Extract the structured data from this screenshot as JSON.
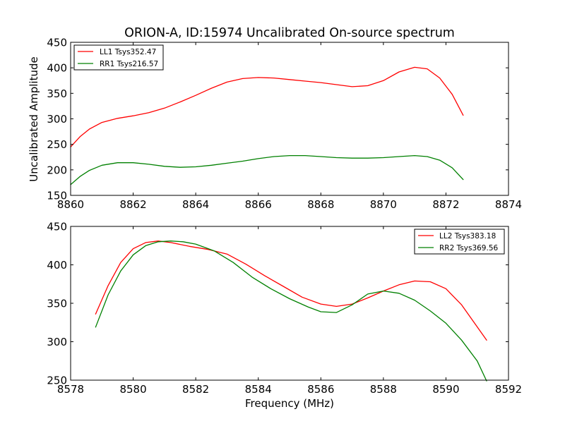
{
  "figure": {
    "title": "ORION-A, ID:15974 Uncalibrated On-source spectrum",
    "ylabel": "Uncalibrated Amplitude",
    "xlabel": "Frequency (MHz)"
  },
  "chart_data": [
    {
      "type": "line",
      "xlim": [
        8860,
        8874
      ],
      "ylim": [
        150,
        450
      ],
      "xticks": [
        8860,
        8862,
        8864,
        8866,
        8868,
        8870,
        8872,
        8874
      ],
      "yticks": [
        150,
        200,
        250,
        300,
        350,
        400,
        450
      ],
      "legend_position": "top-left",
      "series": [
        {
          "name": "LL1 Tsys352.47",
          "color": "#ff0000",
          "x": [
            8860.0,
            8860.3,
            8860.6,
            8861.0,
            8861.5,
            8862.0,
            8862.5,
            8863.0,
            8863.5,
            8864.0,
            8864.5,
            8865.0,
            8865.5,
            8866.0,
            8866.5,
            8867.0,
            8867.5,
            8868.0,
            8868.5,
            8869.0,
            8869.5,
            8870.0,
            8870.5,
            8871.0,
            8871.4,
            8871.8,
            8872.2,
            8872.55
          ],
          "y": [
            245,
            265,
            280,
            293,
            301,
            306,
            312,
            321,
            333,
            346,
            360,
            372,
            379,
            381,
            380,
            377,
            374,
            371,
            367,
            363,
            365,
            375,
            392,
            401,
            398,
            380,
            348,
            307
          ]
        },
        {
          "name": "RR1 Tsys216.57",
          "color": "#008000",
          "x": [
            8860.0,
            8860.3,
            8860.6,
            8861.0,
            8861.5,
            8862.0,
            8862.5,
            8863.0,
            8863.5,
            8864.0,
            8864.5,
            8865.0,
            8865.5,
            8866.0,
            8866.5,
            8867.0,
            8867.5,
            8868.0,
            8868.5,
            8869.0,
            8869.5,
            8870.0,
            8870.5,
            8871.0,
            8871.4,
            8871.8,
            8872.2,
            8872.55
          ],
          "y": [
            171,
            187,
            199,
            209,
            214,
            214,
            211,
            207,
            205,
            206,
            209,
            213,
            217,
            222,
            226,
            228,
            228,
            226,
            224,
            223,
            223,
            224,
            226,
            228,
            226,
            219,
            204,
            181
          ]
        }
      ]
    },
    {
      "type": "line",
      "xlim": [
        8578,
        8592
      ],
      "ylim": [
        250,
        450
      ],
      "xticks": [
        8578,
        8580,
        8582,
        8584,
        8586,
        8588,
        8590,
        8592
      ],
      "yticks": [
        250,
        300,
        350,
        400,
        450
      ],
      "legend_position": "top-right",
      "series": [
        {
          "name": "LL2 Tsys383.18",
          "color": "#ff0000",
          "x": [
            8578.8,
            8579.2,
            8579.6,
            8580.0,
            8580.4,
            8580.8,
            8581.2,
            8581.8,
            8582.4,
            8583.0,
            8583.6,
            8584.2,
            8584.8,
            8585.4,
            8586.0,
            8586.5,
            8587.0,
            8587.5,
            8588.0,
            8588.5,
            8589.0,
            8589.5,
            8590.0,
            8590.5,
            8590.9,
            8591.3
          ],
          "y": [
            336,
            373,
            403,
            421,
            429,
            431,
            429,
            424,
            420,
            414,
            401,
            386,
            372,
            358,
            349,
            346,
            349,
            357,
            366,
            374,
            379,
            378,
            369,
            348,
            325,
            302
          ]
        },
        {
          "name": "RR2 Tsys369.56",
          "color": "#008000",
          "x": [
            8578.8,
            8579.2,
            8579.6,
            8580.0,
            8580.4,
            8580.8,
            8581.2,
            8581.6,
            8582.0,
            8582.6,
            8583.2,
            8583.8,
            8584.4,
            8585.0,
            8585.6,
            8586.0,
            8586.5,
            8587.0,
            8587.5,
            8588.0,
            8588.5,
            8589.0,
            8589.5,
            8590.0,
            8590.5,
            8591.0,
            8591.3
          ],
          "y": [
            319,
            361,
            392,
            413,
            425,
            430,
            431,
            430,
            427,
            418,
            403,
            384,
            369,
            356,
            345,
            339,
            338,
            348,
            362,
            366,
            363,
            354,
            340,
            324,
            302,
            275,
            249
          ]
        }
      ]
    }
  ]
}
